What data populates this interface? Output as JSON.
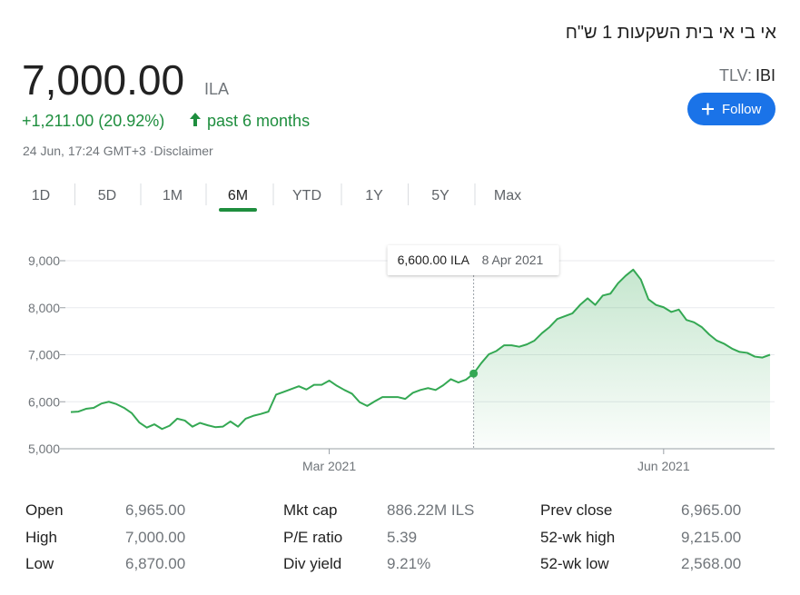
{
  "header": {
    "title": "אי בי אי בית השקעות 1 ש\"ח",
    "price": "7,000.00",
    "currency": "ILA",
    "change": "+1,211.00 (20.92%)",
    "period": "past 6 months",
    "timestamp": "24 Jun, 17:24 GMT+3 ·",
    "disclaimer": "Disclaimer",
    "exchange": "TLV:",
    "ticker": "IBI",
    "follow": "Follow"
  },
  "ranges": [
    "1D",
    "5D",
    "1M",
    "6M",
    "YTD",
    "1Y",
    "5Y",
    "Max"
  ],
  "selected_range": "6M",
  "chart_data": {
    "type": "line",
    "color": "#34a853",
    "categories": [
      null,
      null,
      null,
      null,
      null,
      null,
      null,
      null,
      null,
      null,
      null,
      null,
      null,
      null,
      null,
      null,
      null,
      null,
      null,
      null,
      null,
      null,
      null,
      null,
      null,
      null,
      null,
      null,
      null,
      null,
      null,
      null,
      null,
      null,
      "Mar 2021",
      null,
      null,
      null,
      null,
      null,
      null,
      null,
      null,
      null,
      null,
      null,
      null,
      null,
      null,
      null,
      null,
      null,
      null,
      null,
      null,
      null,
      null,
      null,
      null,
      null,
      null,
      null,
      null,
      null,
      null,
      null,
      null,
      null,
      null,
      null,
      null,
      null,
      null,
      null,
      null,
      null,
      null,
      null,
      "Jun 2021",
      null,
      null,
      null,
      null,
      null,
      null,
      null,
      null,
      null,
      null,
      null,
      null,
      null,
      null
    ],
    "values": [
      5780,
      5790,
      5850,
      5870,
      5960,
      6000,
      5950,
      5870,
      5760,
      5560,
      5450,
      5520,
      5420,
      5490,
      5640,
      5600,
      5470,
      5550,
      5500,
      5460,
      5470,
      5580,
      5470,
      5640,
      5700,
      5740,
      5790,
      6150,
      6210,
      6270,
      6330,
      6260,
      6360,
      6360,
      6450,
      6340,
      6250,
      6170,
      5990,
      5910,
      6010,
      6100,
      6100,
      6100,
      6060,
      6190,
      6250,
      6290,
      6250,
      6350,
      6480,
      6410,
      6470,
      6600,
      6820,
      7010,
      7080,
      7200,
      7200,
      7170,
      7220,
      7300,
      7460,
      7590,
      7760,
      7820,
      7880,
      8060,
      8200,
      8060,
      8260,
      8300,
      8520,
      8680,
      8810,
      8600,
      8180,
      8060,
      8010,
      7910,
      7960,
      7740,
      7690,
      7590,
      7430,
      7300,
      7230,
      7130,
      7060,
      7040,
      6960,
      6940,
      7000
    ],
    "ylim": [
      5000,
      9000
    ],
    "yticks": [
      {
        "value": 5000,
        "label": "5,000"
      },
      {
        "value": 6000,
        "label": "6,000"
      },
      {
        "value": 7000,
        "label": "7,000"
      },
      {
        "value": 8000,
        "label": "8,000"
      },
      {
        "value": 9000,
        "label": "9,000"
      }
    ],
    "grid": true,
    "tooltip": {
      "value": 6600,
      "value_label": "6,600.00 ILA",
      "date": "8 Apr 2021"
    }
  },
  "stats": [
    [
      {
        "label": "Open",
        "value": "6,965.00"
      },
      {
        "label": "High",
        "value": "7,000.00"
      },
      {
        "label": "Low",
        "value": "6,870.00"
      }
    ],
    [
      {
        "label": "Mkt cap",
        "value": "886.22M ILS"
      },
      {
        "label": "P/E ratio",
        "value": "5.39"
      },
      {
        "label": "Div yield",
        "value": "9.21%"
      }
    ],
    [
      {
        "label": "Prev close",
        "value": "6,965.00"
      },
      {
        "label": "52-wk high",
        "value": "9,215.00"
      },
      {
        "label": "52-wk low",
        "value": "2,568.00"
      }
    ]
  ]
}
